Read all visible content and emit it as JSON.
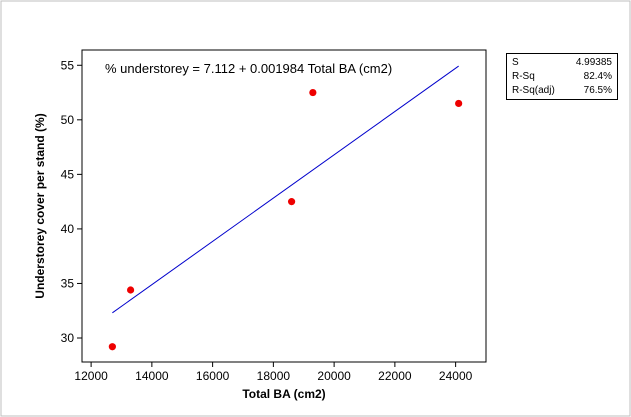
{
  "chart_data": {
    "type": "scatter",
    "equation": "% understorey =  7.112 + 0.001984 Total BA (cm2)",
    "xlabel": "Total BA (cm2)",
    "ylabel": "Understorey cover per stand (%)",
    "xlim": [
      11700,
      25000
    ],
    "ylim": [
      27.8,
      56.4
    ],
    "xticks": [
      12000,
      14000,
      16000,
      18000,
      20000,
      22000,
      24000
    ],
    "yticks": [
      30,
      35,
      40,
      45,
      50,
      55
    ],
    "points": [
      {
        "x": 12700,
        "y": 29.2
      },
      {
        "x": 13300,
        "y": 34.4
      },
      {
        "x": 18600,
        "y": 42.5
      },
      {
        "x": 19300,
        "y": 52.5
      },
      {
        "x": 24100,
        "y": 51.5
      }
    ],
    "fit": {
      "intercept": 7.112,
      "slope": 0.001984,
      "x_range": [
        12700,
        24100
      ]
    },
    "point_color": "#ee0000",
    "line_color": "#0000cc",
    "stats": [
      {
        "label": "S",
        "value": "4.99385"
      },
      {
        "label": "R-Sq",
        "value": "82.4%"
      },
      {
        "label": "R-Sq(adj)",
        "value": "76.5%"
      }
    ]
  }
}
